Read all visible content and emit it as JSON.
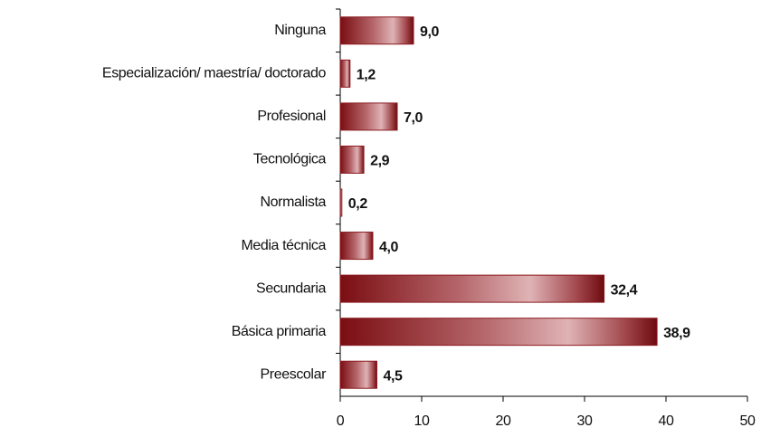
{
  "chart_data": {
    "type": "hbar",
    "categories": [
      "Ninguna",
      "Especialización/ maestría/ doctorado",
      "Profesional",
      "Tecnológica",
      "Normalista",
      "Media técnica",
      "Secundaria",
      "Básica primaria",
      "Preescolar"
    ],
    "values": [
      9.0,
      1.2,
      7.0,
      2.9,
      0.2,
      4.0,
      32.4,
      38.9,
      4.5
    ],
    "value_labels": [
      "9,0",
      "1,2",
      "7,0",
      "2,9",
      "0,2",
      "4,0",
      "32,4",
      "38,9",
      "4,5"
    ],
    "color": "#8b1a1f",
    "xlim": [
      0,
      50
    ],
    "xticks": [
      0,
      10,
      20,
      30,
      40,
      50
    ],
    "grid": false
  }
}
